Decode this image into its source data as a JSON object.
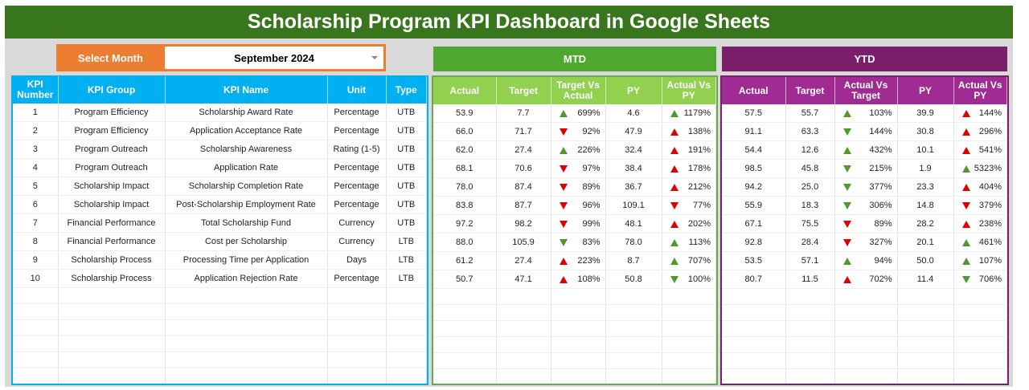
{
  "title": "Scholarship Program KPI Dashboard in Google Sheets",
  "select_month": {
    "label": "Select Month",
    "value": "September 2024"
  },
  "colors": {
    "title": "#38761d",
    "kpi": "#00b0f0",
    "mtd_banner": "#4ea72e",
    "mtd_header": "#92d050",
    "ytd_banner": "#7b1f6a",
    "ytd_header": "#a02b93",
    "up_good": "#4e9a2e",
    "down_bad": "#e00000"
  },
  "mtd": {
    "label": "MTD",
    "headers": [
      "Actual",
      "Target",
      "Target Vs Actual",
      "PY",
      "Actual Vs PY"
    ]
  },
  "ytd": {
    "label": "YTD",
    "headers": [
      "Actual",
      "Target",
      "Actual Vs Target",
      "PY",
      "Actual Vs PY"
    ]
  },
  "kpi_headers": [
    "KPI Number",
    "KPI Group",
    "KPI Name",
    "Unit",
    "Type"
  ],
  "rows": [
    {
      "num": "1",
      "group": "Program Efficiency",
      "name": "Scholarship Award Rate",
      "unit": "Percentage",
      "type": "UTB",
      "mtd": [
        "53.9",
        "7.7",
        {
          "v": "699%",
          "d": "up",
          "c": "green"
        },
        "4.6",
        {
          "v": "1179%",
          "d": "up",
          "c": "green"
        }
      ],
      "ytd": [
        "57.5",
        "55.7",
        {
          "v": "103%",
          "d": "up",
          "c": "green"
        },
        "39.9",
        {
          "v": "144%",
          "d": "up",
          "c": "red"
        }
      ]
    },
    {
      "num": "2",
      "group": "Program Efficiency",
      "name": "Application Acceptance Rate",
      "unit": "Percentage",
      "type": "UTB",
      "mtd": [
        "66.0",
        "71.7",
        {
          "v": "92%",
          "d": "down",
          "c": "red"
        },
        "47.9",
        {
          "v": "138%",
          "d": "up",
          "c": "red"
        }
      ],
      "ytd": [
        "91.1",
        "63.3",
        {
          "v": "144%",
          "d": "down",
          "c": "green"
        },
        "30.8",
        {
          "v": "296%",
          "d": "up",
          "c": "red"
        }
      ]
    },
    {
      "num": "3",
      "group": "Program Outreach",
      "name": "Scholarship Awareness",
      "unit": "Rating (1-5)",
      "type": "UTB",
      "mtd": [
        "62.0",
        "27.4",
        {
          "v": "226%",
          "d": "up",
          "c": "green"
        },
        "32.4",
        {
          "v": "191%",
          "d": "up",
          "c": "red"
        }
      ],
      "ytd": [
        "54.4",
        "12.6",
        {
          "v": "432%",
          "d": "up",
          "c": "green"
        },
        "10.1",
        {
          "v": "541%",
          "d": "up",
          "c": "red"
        }
      ]
    },
    {
      "num": "4",
      "group": "Program Outreach",
      "name": "Application Rate",
      "unit": "Percentage",
      "type": "UTB",
      "mtd": [
        "68.1",
        "70.6",
        {
          "v": "97%",
          "d": "down",
          "c": "red"
        },
        "38.4",
        {
          "v": "178%",
          "d": "up",
          "c": "red"
        }
      ],
      "ytd": [
        "98.5",
        "45.8",
        {
          "v": "215%",
          "d": "down",
          "c": "green"
        },
        "1.9",
        {
          "v": "5323%",
          "d": "up",
          "c": "green"
        }
      ]
    },
    {
      "num": "5",
      "group": "Scholarship Impact",
      "name": "Scholarship Completion Rate",
      "unit": "Percentage",
      "type": "UTB",
      "mtd": [
        "78.0",
        "87.4",
        {
          "v": "89%",
          "d": "down",
          "c": "red"
        },
        "36.7",
        {
          "v": "212%",
          "d": "up",
          "c": "red"
        }
      ],
      "ytd": [
        "94.2",
        "25.0",
        {
          "v": "377%",
          "d": "down",
          "c": "green"
        },
        "23.3",
        {
          "v": "404%",
          "d": "up",
          "c": "red"
        }
      ]
    },
    {
      "num": "6",
      "group": "Scholarship Impact",
      "name": "Post-Scholarship Employment Rate",
      "unit": "Percentage",
      "type": "UTB",
      "mtd": [
        "83.8",
        "87.7",
        {
          "v": "96%",
          "d": "down",
          "c": "red"
        },
        "109.1",
        {
          "v": "77%",
          "d": "down",
          "c": "red"
        }
      ],
      "ytd": [
        "55.9",
        "18.3",
        {
          "v": "306%",
          "d": "down",
          "c": "green"
        },
        "14.8",
        {
          "v": "379%",
          "d": "down",
          "c": "red"
        }
      ]
    },
    {
      "num": "7",
      "group": "Financial Performance",
      "name": "Total Scholarship Fund",
      "unit": "Currency",
      "type": "UTB",
      "mtd": [
        "97.2",
        "98.2",
        {
          "v": "99%",
          "d": "down",
          "c": "red"
        },
        "48.1",
        {
          "v": "202%",
          "d": "up",
          "c": "red"
        }
      ],
      "ytd": [
        "67.1",
        "75.5",
        {
          "v": "89%",
          "d": "down",
          "c": "red"
        },
        "28.2",
        {
          "v": "238%",
          "d": "up",
          "c": "red"
        }
      ]
    },
    {
      "num": "8",
      "group": "Financial Performance",
      "name": "Cost per Scholarship",
      "unit": "Currency",
      "type": "LTB",
      "mtd": [
        "88.0",
        "105.9",
        {
          "v": "83%",
          "d": "down",
          "c": "green"
        },
        "78.0",
        {
          "v": "113%",
          "d": "up",
          "c": "green"
        }
      ],
      "ytd": [
        "92.8",
        "28.4",
        {
          "v": "327%",
          "d": "down",
          "c": "red"
        },
        "20.1",
        {
          "v": "461%",
          "d": "up",
          "c": "green"
        }
      ]
    },
    {
      "num": "9",
      "group": "Scholarship Process",
      "name": "Processing Time per Application",
      "unit": "Days",
      "type": "LTB",
      "mtd": [
        "61.2",
        "27.4",
        {
          "v": "223%",
          "d": "up",
          "c": "red"
        },
        "8.7",
        {
          "v": "707%",
          "d": "up",
          "c": "green"
        }
      ],
      "ytd": [
        "53.5",
        "57.1",
        {
          "v": "94%",
          "d": "up",
          "c": "green"
        },
        "50.0",
        {
          "v": "107%",
          "d": "up",
          "c": "green"
        }
      ]
    },
    {
      "num": "10",
      "group": "Scholarship Process",
      "name": "Application Rejection Rate",
      "unit": "Percentage",
      "type": "LTB",
      "mtd": [
        "50.7",
        "47.1",
        {
          "v": "108%",
          "d": "up",
          "c": "red"
        },
        "50.8",
        {
          "v": "100%",
          "d": "down",
          "c": "green"
        }
      ],
      "ytd": [
        "80.7",
        "11.5",
        {
          "v": "702%",
          "d": "up",
          "c": "red"
        },
        "11.4",
        {
          "v": "706%",
          "d": "down",
          "c": "green"
        }
      ]
    }
  ]
}
